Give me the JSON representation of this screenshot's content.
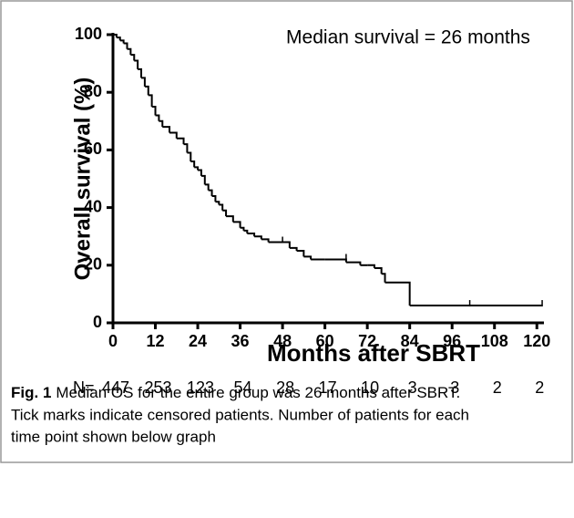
{
  "chart_data": {
    "type": "step",
    "annotation": "Median survival = 26 months",
    "xlabel": "Months after SBRT",
    "ylabel": "Overall survival (%)",
    "x": [
      0,
      1,
      2,
      3,
      4,
      5,
      6,
      7,
      8,
      9,
      10,
      11,
      12,
      13,
      14,
      16,
      18,
      20,
      21,
      22,
      23,
      24,
      25,
      26,
      27,
      28,
      29,
      30,
      31,
      32,
      34,
      36,
      37,
      38,
      40,
      42,
      44,
      48,
      50,
      52,
      54,
      56,
      60,
      66,
      70,
      72,
      74,
      76,
      77,
      84,
      121.5
    ],
    "values": [
      100,
      99,
      98,
      97,
      95,
      93,
      91,
      88,
      85,
      82,
      79,
      75,
      72,
      70,
      68,
      66,
      64,
      62,
      59,
      56,
      54,
      53,
      51,
      48,
      46,
      44,
      42,
      41,
      39,
      37,
      35,
      33,
      32,
      31,
      30,
      29,
      28,
      28,
      26,
      25,
      23,
      22,
      22,
      21,
      20,
      20,
      19,
      17,
      14,
      6,
      6
    ],
    "color": "#000000",
    "censor_marks": {
      "x": [
        48,
        66,
        101,
        121.5
      ],
      "values": [
        28,
        22,
        6,
        6
      ]
    },
    "xlim": [
      0,
      122
    ],
    "xticks": [
      0,
      12,
      24,
      36,
      48,
      60,
      72,
      84,
      96,
      108,
      120
    ],
    "ylim": [
      0,
      100
    ],
    "yticks": [
      0,
      20,
      40,
      60,
      80,
      100
    ],
    "at_risk_label": "N=",
    "at_risk": [
      447,
      253,
      123,
      54,
      28,
      17,
      10,
      3,
      3,
      2,
      2
    ]
  },
  "caption": {
    "label": "Fig. 1",
    "lines": [
      "Median OS for the entire group was 26 months after SBRT.",
      "Tick marks indicate censored patients. Number of patients for each",
      "time point shown below graph"
    ]
  }
}
